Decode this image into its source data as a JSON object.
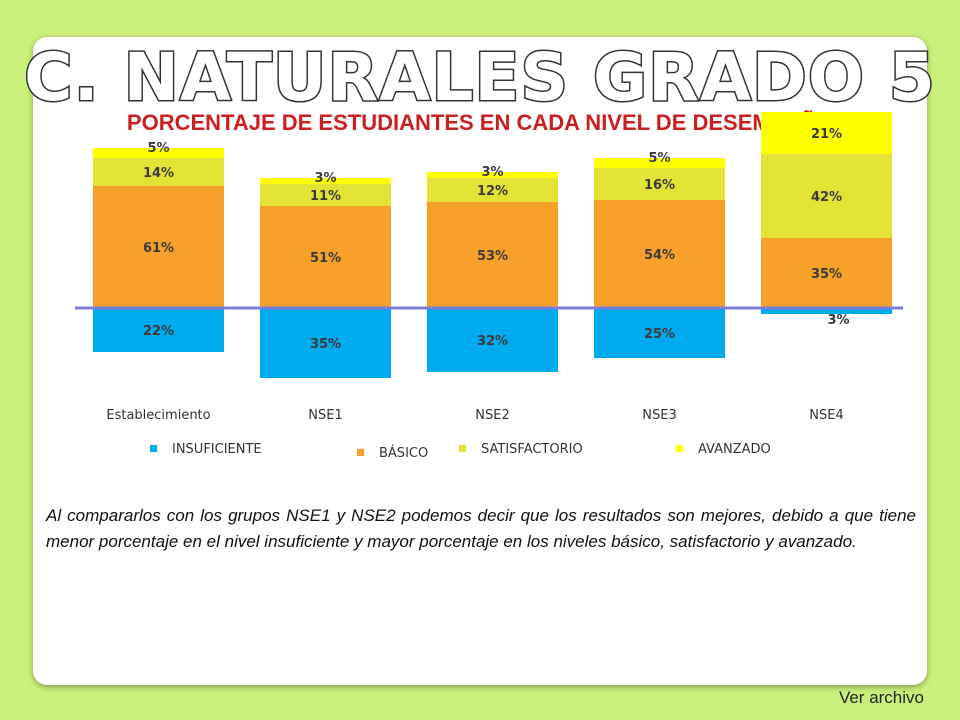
{
  "header": {
    "title": "C. NATURALES GRADO 5",
    "subtitle": "PORCENTAJE DE ESTUDIANTES EN CADA NIVEL DE DESEMPEÑO"
  },
  "chart_data": {
    "type": "bar",
    "stacked": true,
    "diverging_baseline": "between INSUFICIENTE and BÁSICO",
    "categories": [
      "Establecimiento",
      "NSE1",
      "NSE2",
      "NSE3",
      "NSE4"
    ],
    "series": [
      {
        "name": "INSUFICIENTE",
        "values": [
          22,
          35,
          32,
          25,
          3
        ],
        "color": "#00aaee"
      },
      {
        "name": "BÁSICO",
        "values": [
          61,
          51,
          53,
          54,
          35
        ],
        "color": "#f7a12b"
      },
      {
        "name": "SATISFACTORIO",
        "values": [
          14,
          11,
          12,
          16,
          42
        ],
        "color": "#e3e336"
      },
      {
        "name": "AVANZADO",
        "values": [
          5,
          3,
          3,
          5,
          21
        ],
        "color": "#ffff00"
      }
    ],
    "legend_position": "bottom",
    "baseline_color": "#7b7bdc"
  },
  "body": {
    "caption": "Al compararlos con los grupos NSE1 y NSE2 podemos decir que los resultados son mejores, debido a que tiene menor porcentaje en el  nivel insuficiente y mayor porcentaje en los niveles básico, satisfactorio y avanzado."
  },
  "footer": {
    "link_label": "Ver archivo"
  }
}
